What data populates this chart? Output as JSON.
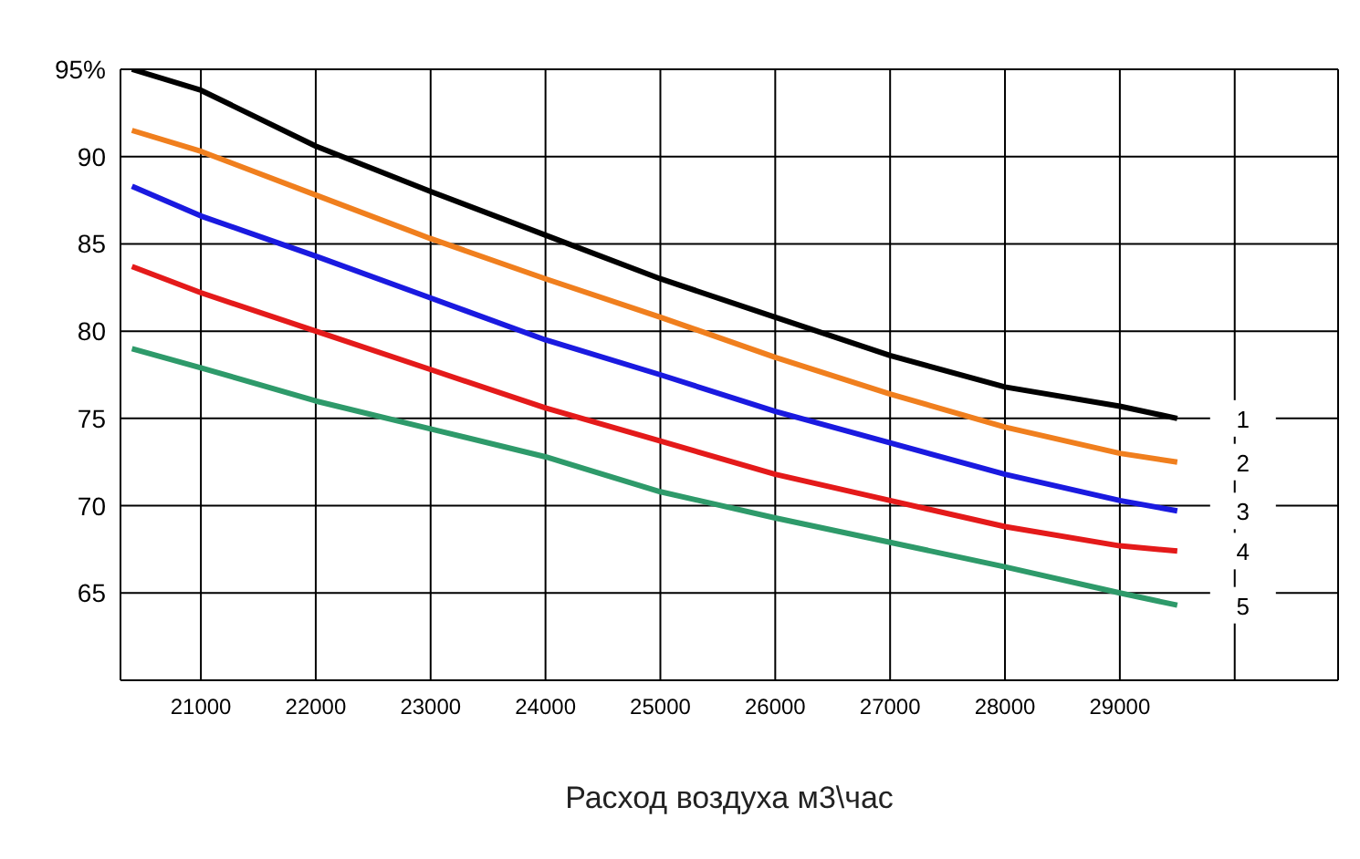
{
  "chart_data": {
    "type": "line",
    "xlabel": "Расход воздуха м3\\час",
    "x": [
      20400,
      21000,
      22000,
      23000,
      24000,
      25000,
      26000,
      27000,
      28000,
      29000,
      29500
    ],
    "series": [
      {
        "name": "1",
        "color": "#000000",
        "values": [
          95,
          93.8,
          90.6,
          88,
          85.5,
          83,
          80.8,
          78.6,
          76.8,
          75.7,
          75
        ]
      },
      {
        "name": "2",
        "color": "#f07f1e",
        "values": [
          91.5,
          90.3,
          87.8,
          85.3,
          83,
          80.8,
          78.5,
          76.4,
          74.5,
          73,
          72.5
        ]
      },
      {
        "name": "3",
        "color": "#1a1ae0",
        "values": [
          88.3,
          86.6,
          84.3,
          81.9,
          79.5,
          77.5,
          75.4,
          73.6,
          71.8,
          70.3,
          69.7
        ]
      },
      {
        "name": "4",
        "color": "#e41a1a",
        "values": [
          83.7,
          82.2,
          80,
          77.8,
          75.6,
          73.7,
          71.8,
          70.3,
          68.8,
          67.7,
          67.4
        ]
      },
      {
        "name": "5",
        "color": "#2e9a6a",
        "values": [
          79,
          77.9,
          76,
          74.4,
          72.8,
          70.8,
          69.3,
          67.9,
          66.5,
          65,
          64.3
        ]
      }
    ],
    "xlim": [
      20300,
      30900
    ],
    "xticks": [
      21000,
      22000,
      23000,
      24000,
      25000,
      26000,
      27000,
      28000,
      29000,
      {
        "value": 30000,
        "label": null
      }
    ],
    "ylim": [
      60,
      95
    ],
    "yticks": [
      {
        "value": 60,
        "label": null
      },
      65,
      70,
      75,
      80,
      85,
      90,
      {
        "value": 95,
        "label": "95%"
      }
    ],
    "grid": true,
    "legend": false,
    "marker": "none",
    "line_style": "solid"
  }
}
